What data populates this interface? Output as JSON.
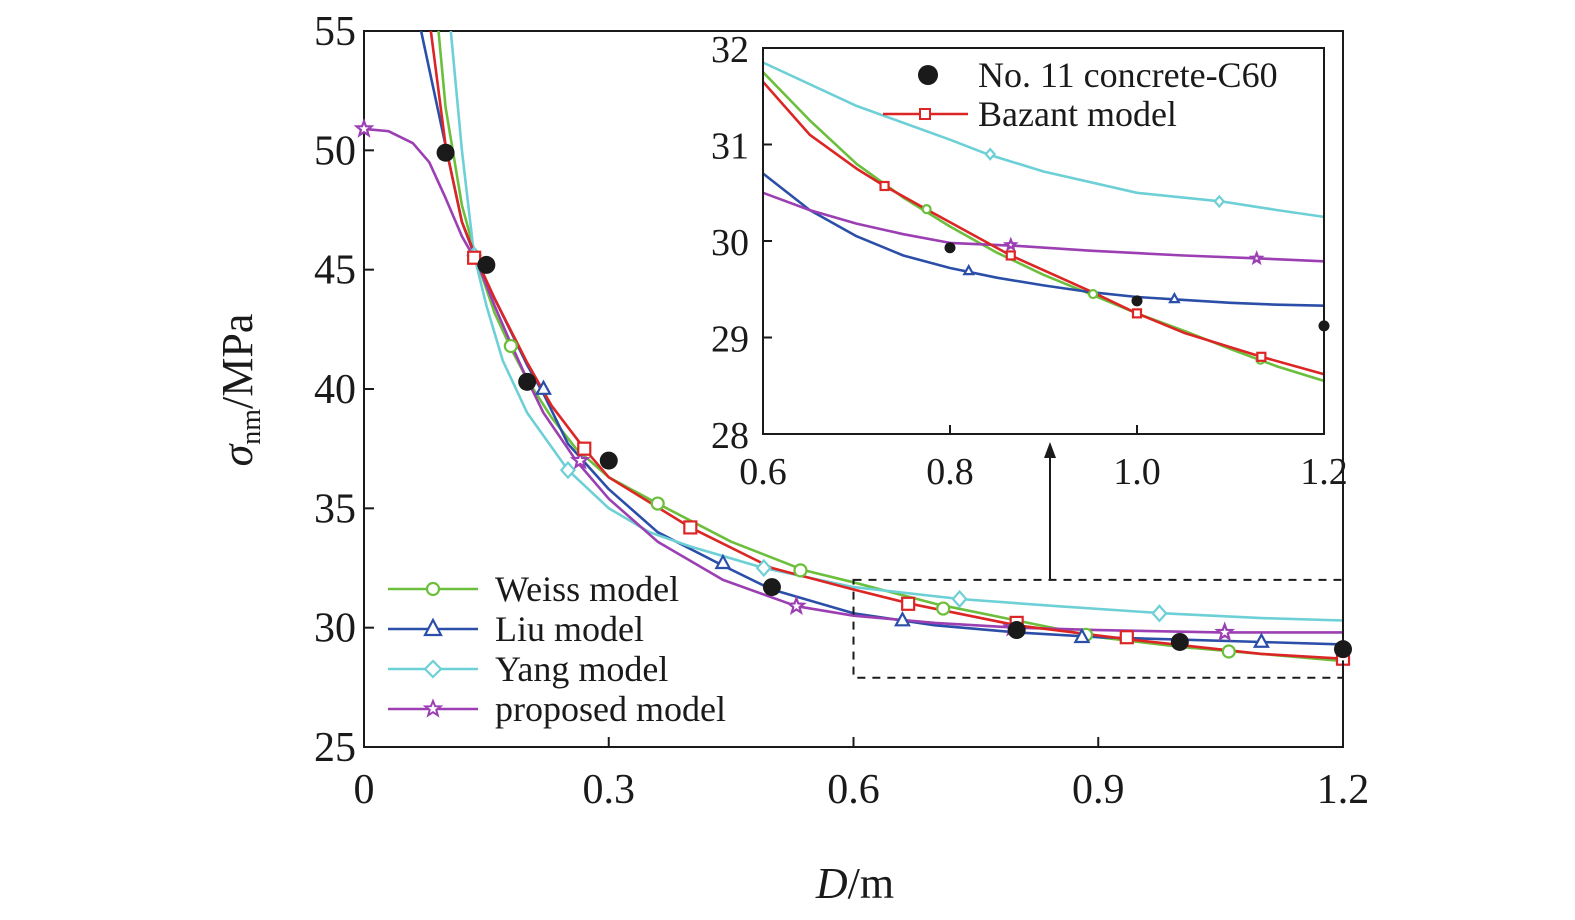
{
  "chart_data": [
    {
      "type": "line",
      "panel": "main",
      "xlabel": {
        "italic": "D",
        "rest": "/m"
      },
      "ylabel": {
        "symbol": "σ",
        "subscript": "nm",
        "rest": "/MPa"
      },
      "xlim": [
        0,
        1.2
      ],
      "ylim": [
        25,
        55
      ],
      "xticks": [
        0,
        0.3,
        0.6,
        0.9,
        1.2
      ],
      "xtick_labels": [
        "0",
        "0.3",
        "0.6",
        "0.9",
        "1.2"
      ],
      "yticks": [
        25,
        30,
        35,
        40,
        45,
        50,
        55
      ],
      "ytick_labels": [
        "25",
        "30",
        "35",
        "40",
        "45",
        "50",
        "55"
      ],
      "legend_position": "bottom-left",
      "experimental": {
        "name": "No. 11 concrete-C60",
        "color": "#1a1a1a",
        "x": [
          0.1,
          0.15,
          0.2,
          0.3,
          0.5,
          0.8,
          1.0,
          1.2
        ],
        "y": [
          49.9,
          45.2,
          40.3,
          37.0,
          31.7,
          29.9,
          29.4,
          29.1
        ]
      },
      "series": [
        {
          "name": "Weiss model",
          "color": "#6cbf3c",
          "marker": "circle",
          "x": [
            0.09,
            0.1,
            0.12,
            0.14,
            0.16,
            0.18,
            0.2,
            0.23,
            0.26,
            0.3,
            0.36,
            0.45,
            0.54,
            0.6,
            0.7,
            0.8,
            0.9,
            1.0,
            1.1,
            1.2
          ],
          "y": [
            55.5,
            51.8,
            47.7,
            45.2,
            43.2,
            41.7,
            40.4,
            38.8,
            37.5,
            36.3,
            35.2,
            33.6,
            32.4,
            31.9,
            31.0,
            30.3,
            29.6,
            29.2,
            28.9,
            28.6
          ],
          "marker_x": [
            0.18,
            0.36,
            0.535,
            0.71,
            0.885,
            1.06
          ],
          "marker_y": [
            41.8,
            35.2,
            32.4,
            30.8,
            29.7,
            29.0
          ]
        },
        {
          "name": "Liu model",
          "color": "#2b4fa8",
          "marker": "triangle",
          "x": [
            0.07,
            0.1,
            0.12,
            0.14,
            0.16,
            0.18,
            0.2,
            0.22,
            0.25,
            0.3,
            0.36,
            0.44,
            0.5,
            0.6,
            0.7,
            0.8,
            0.9,
            1.0,
            1.1,
            1.2
          ],
          "y": [
            55.0,
            50.2,
            47.0,
            45.2,
            43.8,
            42.4,
            41.0,
            39.8,
            37.7,
            35.8,
            34.0,
            32.6,
            31.6,
            30.6,
            30.1,
            29.8,
            29.6,
            29.5,
            29.4,
            29.3
          ],
          "marker_x": [
            0.22,
            0.44,
            0.66,
            0.88,
            1.1
          ],
          "marker_y": [
            40.0,
            32.7,
            30.3,
            29.6,
            29.4
          ]
        },
        {
          "name": "Yang model",
          "color": "#6dd0d6",
          "marker": "diamond",
          "x": [
            0.105,
            0.12,
            0.135,
            0.15,
            0.17,
            0.2,
            0.25,
            0.3,
            0.35,
            0.4,
            0.49,
            0.6,
            0.73,
            0.85,
            0.98,
            1.1,
            1.2
          ],
          "y": [
            55.5,
            50.0,
            45.6,
            43.5,
            41.2,
            39.0,
            36.6,
            35.0,
            34.0,
            33.4,
            32.5,
            31.7,
            31.2,
            30.9,
            30.6,
            30.4,
            30.3
          ],
          "marker_x": [
            0.135,
            0.25,
            0.49,
            0.73,
            0.975
          ],
          "marker_y": [
            45.6,
            36.6,
            32.5,
            31.2,
            30.6
          ]
        },
        {
          "name": "proposed model",
          "color": "#9b3fb3",
          "marker": "star",
          "x": [
            0.0,
            0.03,
            0.06,
            0.08,
            0.1,
            0.12,
            0.14,
            0.16,
            0.18,
            0.2,
            0.22,
            0.26,
            0.3,
            0.36,
            0.44,
            0.53,
            0.6,
            0.7,
            0.8,
            0.9,
            1.05,
            1.2
          ],
          "y": [
            50.9,
            50.8,
            50.3,
            49.5,
            48.0,
            46.4,
            45.2,
            43.5,
            41.9,
            40.4,
            39.0,
            37.0,
            35.4,
            33.6,
            32.0,
            30.9,
            30.5,
            30.2,
            30.0,
            29.9,
            29.8,
            29.8
          ],
          "marker_x": [
            0.0,
            0.265,
            0.53,
            0.795,
            1.055
          ],
          "marker_y": [
            50.9,
            37.0,
            30.9,
            30.0,
            29.8
          ]
        },
        {
          "name": "Bazant model",
          "color": "#dc2626",
          "marker": "square",
          "x": [
            0.08,
            0.1,
            0.12,
            0.14,
            0.16,
            0.2,
            0.23,
            0.27,
            0.3,
            0.4,
            0.5,
            0.6,
            0.67,
            0.8,
            0.94,
            1.1,
            1.2
          ],
          "y": [
            55.5,
            50.2,
            47.0,
            45.3,
            43.8,
            41.1,
            39.3,
            37.5,
            36.3,
            34.2,
            32.5,
            31.6,
            31.0,
            30.1,
            29.5,
            28.9,
            28.7
          ],
          "marker_x": [
            0.135,
            0.27,
            0.4,
            0.667,
            0.8,
            0.935,
            1.2
          ],
          "marker_y": [
            45.5,
            37.5,
            34.2,
            31.0,
            30.2,
            29.6,
            28.7
          ]
        }
      ],
      "zoom_box": {
        "x": [
          0.6,
          1.2
        ],
        "y": [
          27.9,
          32.0
        ]
      }
    },
    {
      "type": "line",
      "panel": "inset",
      "xlim": [
        0.6,
        1.2
      ],
      "ylim": [
        28,
        32
      ],
      "xticks": [
        0.6,
        0.8,
        1.0,
        1.2
      ],
      "xtick_labels": [
        "0.6",
        "0.8",
        "1.0",
        "1.2"
      ],
      "yticks": [
        28,
        29,
        30,
        31,
        32
      ],
      "ytick_labels": [
        "28",
        "29",
        "30",
        "31",
        "32"
      ],
      "legend_position": "top-right",
      "legend_entries": [
        "No. 11 concrete-C60",
        "Bazant model"
      ],
      "experimental": {
        "x": [
          0.8,
          1.0,
          1.2
        ],
        "y": [
          29.93,
          29.38,
          29.12
        ]
      },
      "series": [
        {
          "name": "Weiss model",
          "x": [
            0.6,
            0.65,
            0.7,
            0.75,
            0.8,
            0.85,
            0.9,
            0.95,
            1.0,
            1.05,
            1.1,
            1.15,
            1.2
          ],
          "y": [
            31.75,
            31.25,
            30.8,
            30.45,
            30.15,
            29.88,
            29.65,
            29.45,
            29.25,
            29.07,
            28.88,
            28.7,
            28.55
          ],
          "marker_x": [
            0.775,
            0.953,
            1.132
          ],
          "marker_y": [
            30.33,
            29.45,
            28.77
          ]
        },
        {
          "name": "Liu model",
          "x": [
            0.6,
            0.65,
            0.7,
            0.75,
            0.8,
            0.85,
            0.9,
            0.95,
            1.0,
            1.05,
            1.1,
            1.15,
            1.2
          ],
          "y": [
            30.7,
            30.32,
            30.05,
            29.85,
            29.72,
            29.62,
            29.54,
            29.47,
            29.42,
            29.39,
            29.36,
            29.34,
            29.33
          ],
          "marker_x": [
            0.82,
            1.04
          ],
          "marker_y": [
            29.69,
            29.4
          ]
        },
        {
          "name": "Yang model",
          "x": [
            0.6,
            0.7,
            0.8,
            0.84,
            0.9,
            1.0,
            1.09,
            1.15,
            1.2
          ],
          "y": [
            31.85,
            31.4,
            31.05,
            30.9,
            30.72,
            30.5,
            30.41,
            30.32,
            30.25
          ],
          "marker_x": [
            0.843,
            1.088
          ],
          "marker_y": [
            30.9,
            30.41
          ]
        },
        {
          "name": "proposed model",
          "x": [
            0.6,
            0.65,
            0.7,
            0.75,
            0.8,
            0.87,
            0.95,
            1.05,
            1.13,
            1.2
          ],
          "y": [
            30.5,
            30.32,
            30.18,
            30.07,
            29.98,
            29.95,
            29.9,
            29.85,
            29.82,
            29.79
          ],
          "marker_x": [
            0.865,
            1.128
          ],
          "marker_y": [
            29.96,
            29.82
          ]
        },
        {
          "name": "Bazant model",
          "x": [
            0.6,
            0.65,
            0.7,
            0.73,
            0.78,
            0.865,
            0.95,
            1.0,
            1.05,
            1.1,
            1.133,
            1.2
          ],
          "y": [
            31.65,
            31.1,
            30.75,
            30.57,
            30.3,
            29.85,
            29.48,
            29.25,
            29.05,
            28.9,
            28.8,
            28.62
          ],
          "marker_x": [
            0.73,
            0.865,
            1.0,
            1.133
          ],
          "marker_y": [
            30.57,
            29.85,
            29.25,
            28.8
          ]
        }
      ]
    }
  ]
}
